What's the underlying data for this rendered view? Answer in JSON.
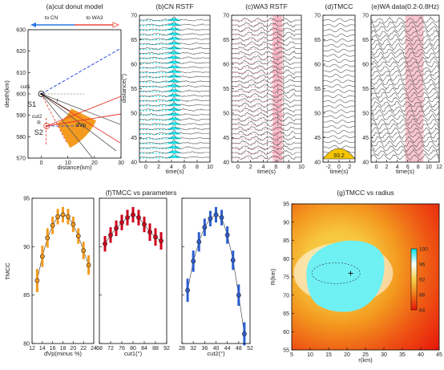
{
  "chart_data": [
    {
      "panel": "a",
      "type": "diagram",
      "title": "(a)cut donut model",
      "xlabel": "distance(km)",
      "ylabel": "depth(km)",
      "xlim": [
        -5,
        30
      ],
      "ylim": [
        630,
        570
      ],
      "xticks": [
        0,
        10,
        20,
        30
      ],
      "yticks": [
        570,
        580,
        590,
        600,
        610,
        620,
        630
      ],
      "direction_labels": [
        "to CN",
        "to WA3"
      ],
      "labels": {
        "s1": "S1",
        "s2": "S2",
        "cut1": "cut1",
        "cut2": "cut2",
        "r": "r",
        "R": "R",
        "dvp": "dVp"
      },
      "points": {
        "s1": [
          0,
          600
        ],
        "s2": [
          2,
          585
        ]
      },
      "radii_km": {
        "inner": 12,
        "outer": 20
      },
      "colors": {
        "donut": "#f39a1f",
        "blue_line": "#1f3fd6",
        "red_line": "#e6342a",
        "to_cn": "#2b78e4",
        "to_wa3": "#e8483b"
      }
    },
    {
      "panel": "b",
      "type": "waveform-stack",
      "title": "(b)CN RSTF",
      "xlabel": "time(s)",
      "ylabel": "distance(°)",
      "xlim": [
        -1,
        10
      ],
      "ylim": [
        70,
        40
      ],
      "xticks": [
        0,
        2,
        4,
        6,
        8,
        10
      ],
      "yticks": [
        40,
        45,
        50,
        55,
        60,
        65,
        70
      ],
      "trace_count": 30,
      "peak_time_s": 4.4,
      "colors": {
        "trace": "#555555",
        "fill": "#00e5ee"
      }
    },
    {
      "panel": "c",
      "type": "waveform-stack",
      "title": "(c)WA3 RSTF",
      "xlabel": "time(s)",
      "xlim": [
        -1,
        10
      ],
      "ylim": [
        70,
        40
      ],
      "xticks": [
        0,
        2,
        4,
        6,
        8,
        10
      ],
      "trace_count": 30,
      "highlight_time_s": [
        5.5,
        7.0
      ],
      "dashed_times_s": [
        4.6,
        6.3,
        7.2
      ],
      "colors": {
        "trace": "#555555",
        "fill": "#f6a9b8",
        "highlight": "#f9c6d0"
      }
    },
    {
      "panel": "d",
      "type": "waveform-stack",
      "title": "(d)TMCC",
      "xlabel": "time(s)",
      "xlim": [
        -3,
        3
      ],
      "ylim": [
        70,
        40
      ],
      "xticks": [
        -2,
        0,
        2
      ],
      "trace_count": 28,
      "stack_label": "93.2",
      "colors": {
        "trace": "#555555",
        "stack_fill": "#f5c400"
      }
    },
    {
      "panel": "e",
      "type": "waveform-stack",
      "title": "(e)WA data(0.2-0.8Hz)",
      "xlabel": "time(s)",
      "xlim": [
        -1,
        12
      ],
      "ylim": [
        70,
        40
      ],
      "xticks": [
        0,
        2,
        4,
        6,
        8,
        10,
        12
      ],
      "trace_count": 32,
      "highlight_time_s": [
        5.5,
        9.0
      ],
      "colors": {
        "trace": "#555555",
        "highlight": "#f9c6d0"
      }
    },
    {
      "panel": "f",
      "type": "scatter",
      "title": "(f)TMCC vs parameters",
      "ylabel": "TMCC",
      "ylim": [
        80,
        95
      ],
      "yticks": [
        80,
        85,
        90,
        95
      ],
      "subplots": [
        {
          "xlabel": "dVp(minus %)",
          "xlim": [
            12,
            24
          ],
          "xticks": [
            12,
            14,
            16,
            18,
            20,
            22,
            24
          ],
          "x": [
            13,
            14,
            15,
            16,
            17,
            18,
            19,
            20,
            21,
            22,
            23
          ],
          "y": [
            86.5,
            89.0,
            90.9,
            92.2,
            93.1,
            93.3,
            93.1,
            92.3,
            91.1,
            89.6,
            88.1
          ],
          "err": [
            1.2,
            1.1,
            1.0,
            0.9,
            0.8,
            0.8,
            0.8,
            0.8,
            0.8,
            0.9,
            1.0
          ],
          "color": "#f39a1f"
        },
        {
          "xlabel": "cut1(°)",
          "xlim": [
            68,
            92
          ],
          "xticks": [
            68,
            72,
            76,
            80,
            84,
            88,
            92
          ],
          "x": [
            70,
            72,
            74,
            76,
            78,
            80,
            82,
            84,
            86,
            88,
            90
          ],
          "y": [
            90.3,
            91.2,
            91.9,
            92.5,
            93.0,
            93.3,
            93.0,
            92.3,
            91.5,
            91.0,
            90.6
          ],
          "err": [
            0.8,
            0.8,
            0.8,
            0.8,
            0.8,
            0.8,
            0.8,
            0.8,
            0.9,
            0.9,
            0.9
          ],
          "color": "#d0021b"
        },
        {
          "xlabel": "cut2(°)",
          "xlim": [
            28,
            52
          ],
          "xticks": [
            28,
            32,
            36,
            40,
            44,
            48,
            52
          ],
          "x": [
            30,
            32,
            34,
            36,
            38,
            40,
            42,
            44,
            46,
            48,
            50
          ],
          "y": [
            85.5,
            88.5,
            90.5,
            92.0,
            92.9,
            93.3,
            93.0,
            91.2,
            88.6,
            85.0,
            81.0
          ],
          "err": [
            1.2,
            1.1,
            1.0,
            0.9,
            0.8,
            0.8,
            0.8,
            0.9,
            1.0,
            1.1,
            1.2
          ],
          "color": "#2e5fd0"
        }
      ]
    },
    {
      "panel": "g",
      "type": "heatmap",
      "title": "(g)TMCC vs radius",
      "xlabel": "r(km)",
      "ylabel": "R(km)",
      "xlim": [
        5,
        45
      ],
      "ylim": [
        55,
        95
      ],
      "xticks": [
        5,
        10,
        15,
        20,
        25,
        30,
        35,
        40,
        45
      ],
      "yticks": [
        55,
        60,
        65,
        70,
        75,
        80,
        85,
        90,
        95
      ],
      "colorbar": {
        "ticks": [
          84,
          88,
          92,
          96,
          100
        ],
        "colors": [
          "#e8140a",
          "#f27a1a",
          "#f7d24a",
          "#ffffff",
          "#00e0ee"
        ]
      },
      "best_point": [
        21,
        76
      ]
    }
  ]
}
